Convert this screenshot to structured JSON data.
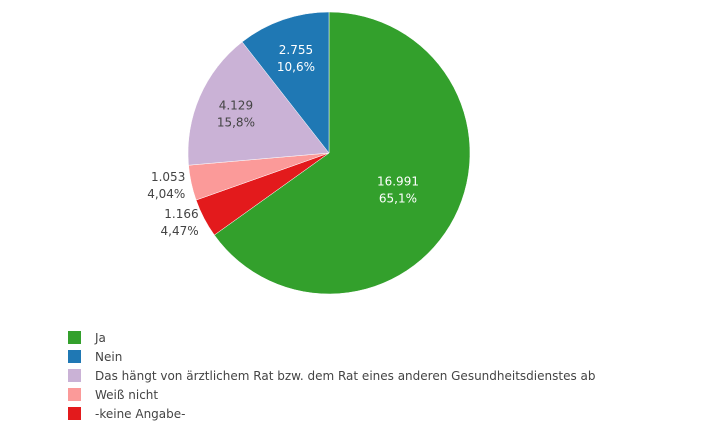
{
  "chart_data": {
    "type": "pie",
    "title": "",
    "direction": "clockwise",
    "start": "12 o'clock",
    "slices": [
      {
        "name": "Ja",
        "value": 16991,
        "percent": 65.1,
        "value_label": "16.991",
        "percent_label": "65,1%",
        "color": "#33a02c",
        "label_color": "#ffffff",
        "label_position": "inside"
      },
      {
        "name": "-keine Angabe-",
        "value": 1166,
        "percent": 4.47,
        "value_label": "1.166",
        "percent_label": "4,47%",
        "color": "#e31a1c",
        "label_color": "#444444",
        "label_position": "outside"
      },
      {
        "name": "Weiß nicht",
        "value": 1053,
        "percent": 4.04,
        "value_label": "1.053",
        "percent_label": "4,04%",
        "color": "#fb9a99",
        "label_color": "#444444",
        "label_position": "outside"
      },
      {
        "name": "Das hängt von ärztlichem Rat bzw. dem Rat eines anderen Gesundheitsdienstes ab",
        "value": 4129,
        "percent": 15.8,
        "value_label": "4.129",
        "percent_label": "15,8%",
        "color": "#cab2d6",
        "label_color": "#444444",
        "label_position": "inside"
      },
      {
        "name": "Nein",
        "value": 2755,
        "percent": 10.6,
        "value_label": "2.755",
        "percent_label": "10,6%",
        "color": "#1f78b4",
        "label_color": "#ffffff",
        "label_position": "inside"
      }
    ],
    "legend": {
      "placement": "bottom-left",
      "entries": [
        {
          "label": "Ja",
          "color": "#33a02c"
        },
        {
          "label": "Nein",
          "color": "#1f78b4"
        },
        {
          "label": "Das hängt von ärztlichem Rat bzw. dem Rat eines anderen Gesundheitsdienstes ab",
          "color": "#cab2d6"
        },
        {
          "label": "Weiß nicht",
          "color": "#fb9a99"
        },
        {
          "label": "-keine Angabe-",
          "color": "#e31a1c"
        }
      ]
    }
  }
}
